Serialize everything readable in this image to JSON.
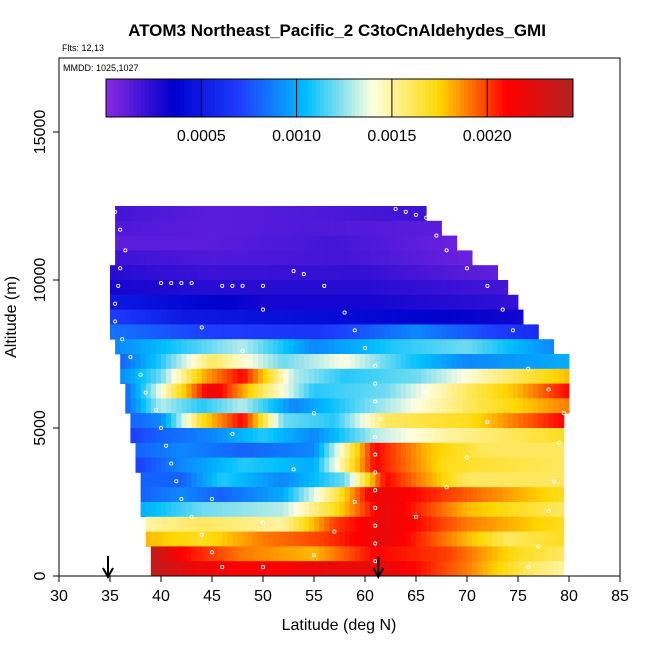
{
  "chart_data": {
    "type": "heatmap",
    "title": "ATOM3 Northeast_Pacific_2 C3toCnAldehydes_GMI",
    "flights_label": "Flts: 12,13",
    "date_label": "MMDD: 1025,1027",
    "xlabel": "Latitude (deg N)",
    "ylabel": "Altitude (m)",
    "xlim": [
      30,
      85
    ],
    "ylim": [
      0,
      17500
    ],
    "xticks": [
      "30",
      "35",
      "40",
      "45",
      "50",
      "55",
      "60",
      "65",
      "70",
      "75",
      "80",
      "85"
    ],
    "yticks": [
      "0",
      "5000",
      "10000",
      "15000"
    ],
    "colorbar": {
      "range": [
        0.0,
        0.00245
      ],
      "ticks": [
        "0.0005",
        "0.0010",
        "0.0015",
        "0.0020"
      ],
      "colors": [
        "#8a2be2",
        "#0000cd",
        "#1e3cff",
        "#00bfff",
        "#ffffe0",
        "#ffd700",
        "#ff0000",
        "#b22222"
      ]
    },
    "markers_latitude": [
      34.8,
      61.3
    ],
    "profile_rows": [
      {
        "alt_bottom": 12000,
        "alt_top": 12500,
        "lat_start": 35.5,
        "lat_end": 66.0,
        "segments": [
          [
            35.5,
            0.00018
          ],
          [
            45,
            0.00012
          ],
          [
            55,
            0.00015
          ],
          [
            66,
            0.0002
          ]
        ]
      },
      {
        "alt_bottom": 11500,
        "alt_top": 12000,
        "lat_start": 35.5,
        "lat_end": 67.5,
        "segments": [
          [
            35.5,
            0.00015
          ],
          [
            45,
            0.00012
          ],
          [
            55,
            0.00015
          ],
          [
            67.5,
            0.00012
          ]
        ]
      },
      {
        "alt_bottom": 11000,
        "alt_top": 11500,
        "lat_start": 35.5,
        "lat_end": 69.0,
        "segments": [
          [
            35.5,
            0.00012
          ],
          [
            45,
            0.00012
          ],
          [
            57,
            0.00018
          ],
          [
            69,
            8e-05
          ]
        ]
      },
      {
        "alt_bottom": 10500,
        "alt_top": 11000,
        "lat_start": 35.5,
        "lat_end": 70.5,
        "segments": [
          [
            35.5,
            0.0002
          ],
          [
            45,
            0.00015
          ],
          [
            58,
            0.00018
          ],
          [
            70.5,
            8e-05
          ]
        ]
      },
      {
        "alt_bottom": 10000,
        "alt_top": 10500,
        "lat_start": 35.0,
        "lat_end": 73.0,
        "segments": [
          [
            35,
            0.00025
          ],
          [
            45,
            0.0002
          ],
          [
            60,
            0.00022
          ],
          [
            73,
            0.0001
          ]
        ]
      },
      {
        "alt_bottom": 9500,
        "alt_top": 10000,
        "lat_start": 35.0,
        "lat_end": 74.0,
        "segments": [
          [
            35,
            0.0003
          ],
          [
            45,
            0.00025
          ],
          [
            60,
            0.00025
          ],
          [
            74,
            0.00018
          ]
        ]
      },
      {
        "alt_bottom": 9000,
        "alt_top": 9500,
        "lat_start": 35.0,
        "lat_end": 75.0,
        "segments": [
          [
            35,
            0.0005
          ],
          [
            42,
            0.0004
          ],
          [
            50,
            0.0003
          ],
          [
            60,
            0.0003
          ],
          [
            75,
            0.00022
          ]
        ]
      },
      {
        "alt_bottom": 8500,
        "alt_top": 9000,
        "lat_start": 35.0,
        "lat_end": 75.5,
        "segments": [
          [
            35,
            0.0007
          ],
          [
            42,
            0.0005
          ],
          [
            50,
            0.00045
          ],
          [
            60,
            0.0004
          ],
          [
            75.5,
            0.0003
          ]
        ]
      },
      {
        "alt_bottom": 8000,
        "alt_top": 8500,
        "lat_start": 35.0,
        "lat_end": 77.0,
        "segments": [
          [
            35,
            0.00085
          ],
          [
            45,
            0.0007
          ],
          [
            55,
            0.00065
          ],
          [
            65,
            0.0009
          ],
          [
            77,
            0.0006
          ]
        ]
      },
      {
        "alt_bottom": 7500,
        "alt_top": 8000,
        "lat_start": 35.5,
        "lat_end": 78.5,
        "segments": [
          [
            35.5,
            0.0009
          ],
          [
            42,
            0.0011
          ],
          [
            48,
            0.0013
          ],
          [
            55,
            0.0009
          ],
          [
            63,
            0.0011
          ],
          [
            70,
            0.0012
          ],
          [
            78.5,
            0.0009
          ]
        ]
      },
      {
        "alt_bottom": 7000,
        "alt_top": 7500,
        "lat_start": 36.0,
        "lat_end": 80.0,
        "segments": [
          [
            36,
            0.0008
          ],
          [
            40,
            0.0011
          ],
          [
            45,
            0.0016
          ],
          [
            52,
            0.0012
          ],
          [
            58,
            0.0014
          ],
          [
            64,
            0.0011
          ],
          [
            70,
            0.0009
          ],
          [
            80,
            0.001
          ]
        ]
      },
      {
        "alt_bottom": 6500,
        "alt_top": 7000,
        "lat_start": 36.0,
        "lat_end": 80.0,
        "segments": [
          [
            36,
            0.0009
          ],
          [
            40,
            0.0012
          ],
          [
            44,
            0.0018
          ],
          [
            48,
            0.0021
          ],
          [
            53,
            0.0013
          ],
          [
            58,
            0.0011
          ],
          [
            65,
            0.0012
          ],
          [
            72,
            0.0015
          ],
          [
            80,
            0.0018
          ]
        ]
      },
      {
        "alt_bottom": 6000,
        "alt_top": 6500,
        "lat_start": 36.5,
        "lat_end": 80.0,
        "segments": [
          [
            36.5,
            0.0008
          ],
          [
            40,
            0.0014
          ],
          [
            45,
            0.0022
          ],
          [
            50,
            0.0016
          ],
          [
            55,
            0.0011
          ],
          [
            62,
            0.0012
          ],
          [
            70,
            0.0016
          ],
          [
            75,
            0.0018
          ],
          [
            80,
            0.0021
          ]
        ]
      },
      {
        "alt_bottom": 5500,
        "alt_top": 6000,
        "lat_start": 36.5,
        "lat_end": 80.0,
        "segments": [
          [
            36.5,
            0.0008
          ],
          [
            40,
            0.0013
          ],
          [
            44,
            0.0011
          ],
          [
            48,
            0.0013
          ],
          [
            53,
            0.0009
          ],
          [
            60,
            0.0012
          ],
          [
            70,
            0.0016
          ],
          [
            80,
            0.0019
          ]
        ]
      },
      {
        "alt_bottom": 5000,
        "alt_top": 5500,
        "lat_start": 37.0,
        "lat_end": 79.5,
        "segments": [
          [
            37,
            0.0008
          ],
          [
            40,
            0.0009
          ],
          [
            44,
            0.0017
          ],
          [
            48,
            0.0021
          ],
          [
            52,
            0.0012
          ],
          [
            57,
            0.0011
          ],
          [
            62,
            0.0016
          ],
          [
            70,
            0.0017
          ],
          [
            79.5,
            0.0021
          ]
        ]
      },
      {
        "alt_bottom": 4500,
        "alt_top": 5000,
        "lat_start": 37.0,
        "lat_end": 79.5,
        "segments": [
          [
            37,
            0.0007
          ],
          [
            40,
            0.0008
          ],
          [
            45,
            0.0009
          ],
          [
            50,
            0.0011
          ],
          [
            55,
            0.0009
          ],
          [
            61,
            0.0013
          ],
          [
            68,
            0.0015
          ],
          [
            79.5,
            0.0017
          ]
        ]
      },
      {
        "alt_bottom": 4000,
        "alt_top": 4500,
        "lat_start": 37.5,
        "lat_end": 79.5,
        "segments": [
          [
            37.5,
            0.0008
          ],
          [
            42,
            0.0009
          ],
          [
            48,
            0.0008
          ],
          [
            55,
            0.0009
          ],
          [
            61,
            0.0021
          ],
          [
            66,
            0.0018
          ],
          [
            72,
            0.0016
          ],
          [
            79.5,
            0.0016
          ]
        ]
      },
      {
        "alt_bottom": 3500,
        "alt_top": 4000,
        "lat_start": 37.5,
        "lat_end": 79.5,
        "segments": [
          [
            37.5,
            0.0007
          ],
          [
            42,
            0.0009
          ],
          [
            48,
            0.0011
          ],
          [
            55,
            0.001
          ],
          [
            61,
            0.0021
          ],
          [
            68,
            0.0017
          ],
          [
            79.5,
            0.0016
          ]
        ]
      },
      {
        "alt_bottom": 3000,
        "alt_top": 3500,
        "lat_start": 38.0,
        "lat_end": 79.5,
        "segments": [
          [
            38,
            0.0008
          ],
          [
            42,
            0.0008
          ],
          [
            46,
            0.0011
          ],
          [
            52,
            0.0009
          ],
          [
            58,
            0.0012
          ],
          [
            62,
            0.0021
          ],
          [
            70,
            0.0016
          ],
          [
            79.5,
            0.0016
          ]
        ]
      },
      {
        "alt_bottom": 2500,
        "alt_top": 3000,
        "lat_start": 38.0,
        "lat_end": 79.5,
        "segments": [
          [
            38,
            0.0008
          ],
          [
            42,
            0.0009
          ],
          [
            46,
            0.0008
          ],
          [
            52,
            0.001
          ],
          [
            57,
            0.0016
          ],
          [
            61,
            0.0022
          ],
          [
            68,
            0.002
          ],
          [
            79.5,
            0.0017
          ]
        ]
      },
      {
        "alt_bottom": 2000,
        "alt_top": 2500,
        "lat_start": 38.0,
        "lat_end": 79.5,
        "segments": [
          [
            38,
            0.001
          ],
          [
            44,
            0.0012
          ],
          [
            52,
            0.0013
          ],
          [
            57,
            0.0017
          ],
          [
            62,
            0.0022
          ],
          [
            70,
            0.0018
          ],
          [
            79.5,
            0.0016
          ]
        ]
      },
      {
        "alt_bottom": 1500,
        "alt_top": 2000,
        "lat_start": 38.5,
        "lat_end": 79.5,
        "segments": [
          [
            38.5,
            0.0015
          ],
          [
            44,
            0.0016
          ],
          [
            52,
            0.0015
          ],
          [
            57,
            0.002
          ],
          [
            62,
            0.0022
          ],
          [
            70,
            0.0019
          ],
          [
            79.5,
            0.0017
          ]
        ]
      },
      {
        "alt_bottom": 1000,
        "alt_top": 1500,
        "lat_start": 38.5,
        "lat_end": 79.5,
        "segments": [
          [
            38.5,
            0.0018
          ],
          [
            44,
            0.0017
          ],
          [
            50,
            0.0019
          ],
          [
            56,
            0.002
          ],
          [
            62,
            0.0022
          ],
          [
            68,
            0.0019
          ],
          [
            74,
            0.0016
          ],
          [
            79.5,
            0.0017
          ]
        ]
      },
      {
        "alt_bottom": 500,
        "alt_top": 1000,
        "lat_start": 39.0,
        "lat_end": 79.5,
        "segments": [
          [
            39,
            0.0024
          ],
          [
            42,
            0.0021
          ],
          [
            48,
            0.0019
          ],
          [
            55,
            0.0018
          ],
          [
            61,
            0.0021
          ],
          [
            68,
            0.002
          ],
          [
            75,
            0.0017
          ],
          [
            79.5,
            0.0016
          ]
        ]
      },
      {
        "alt_bottom": 0,
        "alt_top": 500,
        "lat_start": 39.0,
        "lat_end": 79.5,
        "segments": [
          [
            39,
            0.0024
          ],
          [
            43,
            0.0022
          ],
          [
            50,
            0.0021
          ],
          [
            56,
            0.0022
          ],
          [
            62,
            0.0022
          ],
          [
            70,
            0.0019
          ],
          [
            76,
            0.0016
          ],
          [
            79.5,
            0.0015
          ]
        ]
      }
    ],
    "observation_clusters": [
      [
        35.5,
        12300
      ],
      [
        36.0,
        11700
      ],
      [
        36.5,
        11000
      ],
      [
        36.0,
        10400
      ],
      [
        35.8,
        9800
      ],
      [
        35.5,
        9200
      ],
      [
        35.5,
        8600
      ],
      [
        36.2,
        8000
      ],
      [
        37.0,
        7400
      ],
      [
        38.0,
        6800
      ],
      [
        38.5,
        6200
      ],
      [
        39.5,
        5600
      ],
      [
        40.0,
        5000
      ],
      [
        40.5,
        4400
      ],
      [
        41.0,
        3800
      ],
      [
        41.5,
        3200
      ],
      [
        42.0,
        2600
      ],
      [
        43.0,
        2000
      ],
      [
        44.0,
        1400
      ],
      [
        45.0,
        800
      ],
      [
        46.0,
        300
      ],
      [
        40.0,
        9900
      ],
      [
        41.0,
        9900
      ],
      [
        42.0,
        9900
      ],
      [
        43.0,
        9900
      ],
      [
        46.0,
        9800
      ],
      [
        47.0,
        9800
      ],
      [
        48.0,
        9800
      ],
      [
        50.0,
        9800
      ],
      [
        53.0,
        10300
      ],
      [
        54.0,
        10200
      ],
      [
        56.0,
        9800
      ],
      [
        58.0,
        8900
      ],
      [
        59.0,
        8300
      ],
      [
        60.0,
        7700
      ],
      [
        61.0,
        7100
      ],
      [
        61.0,
        6500
      ],
      [
        61.0,
        5900
      ],
      [
        61.5,
        5300
      ],
      [
        61.0,
        4700
      ],
      [
        61.0,
        4100
      ],
      [
        61.0,
        3500
      ],
      [
        61.0,
        2900
      ],
      [
        61.0,
        2300
      ],
      [
        61.0,
        1700
      ],
      [
        61.0,
        1100
      ],
      [
        61.0,
        500
      ],
      [
        63.0,
        12400
      ],
      [
        64.0,
        12300
      ],
      [
        65.0,
        12200
      ],
      [
        66.0,
        12100
      ],
      [
        67.0,
        11500
      ],
      [
        68.0,
        11000
      ],
      [
        70.0,
        10400
      ],
      [
        72.0,
        9800
      ],
      [
        73.5,
        9000
      ],
      [
        74.5,
        8300
      ],
      [
        76.0,
        7000
      ],
      [
        78.0,
        6300
      ],
      [
        79.5,
        5500
      ],
      [
        79.0,
        4500
      ],
      [
        78.5,
        3200
      ],
      [
        78.0,
        2200
      ],
      [
        77.0,
        1000
      ],
      [
        76.0,
        300
      ],
      [
        50.0,
        300
      ],
      [
        55.0,
        700
      ],
      [
        57.0,
        1500
      ],
      [
        59.0,
        2500
      ],
      [
        65.0,
        2000
      ],
      [
        68.0,
        3000
      ],
      [
        70.0,
        4000
      ],
      [
        72.0,
        5200
      ],
      [
        66.0,
        6200
      ],
      [
        52.0,
        6800
      ],
      [
        48.0,
        7600
      ],
      [
        44.0,
        8400
      ],
      [
        50.0,
        9000
      ],
      [
        55.0,
        5500
      ],
      [
        47.0,
        4800
      ],
      [
        53.0,
        3600
      ],
      [
        45.0,
        2600
      ],
      [
        50.0,
        1800
      ]
    ]
  }
}
